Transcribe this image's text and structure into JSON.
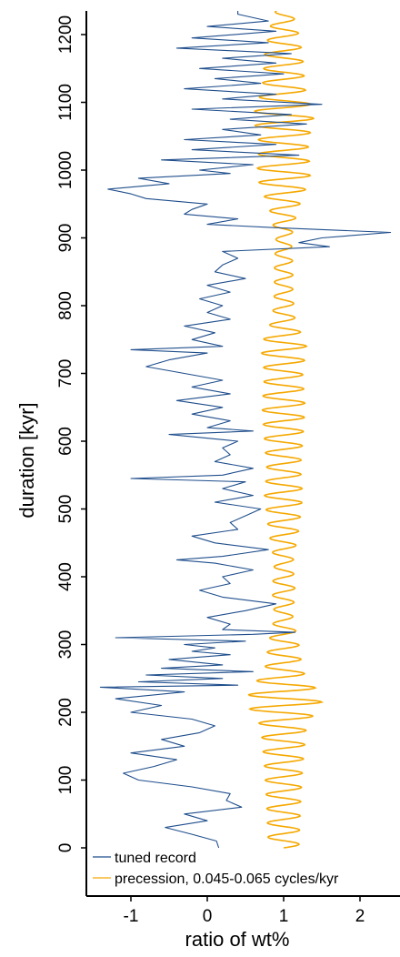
{
  "chart_data": {
    "type": "line",
    "orientation": "vertical",
    "xlabel": "ratio of wt%",
    "ylabel": "duration [kyr]",
    "xlim": [
      -1.5,
      2.6
    ],
    "ylim": [
      -20,
      1240
    ],
    "xticks": [
      -1,
      0,
      1,
      2
    ],
    "xtick_labels": [
      "-1",
      "0",
      "1",
      "2"
    ],
    "yticks": [
      0,
      100,
      200,
      300,
      400,
      500,
      600,
      700,
      800,
      900,
      1000,
      1100,
      1200
    ],
    "ytick_labels": [
      "0",
      "100",
      "200",
      "300",
      "400",
      "500",
      "600",
      "700",
      "800",
      "900",
      "1000",
      "1100",
      "1200"
    ],
    "grid": false,
    "legend_position": "bottom-left",
    "series": [
      {
        "name": "tuned record",
        "color": "#1f4e8c",
        "points": [
          [
            0,
            0.15
          ],
          [
            10,
            0.12
          ],
          [
            20,
            -0.2
          ],
          [
            30,
            -0.55
          ],
          [
            40,
            0.0
          ],
          [
            50,
            -0.3
          ],
          [
            60,
            0.45
          ],
          [
            70,
            0.25
          ],
          [
            80,
            0.3
          ],
          [
            90,
            -0.2
          ],
          [
            100,
            -0.9
          ],
          [
            110,
            -1.1
          ],
          [
            120,
            -0.7
          ],
          [
            130,
            -0.4
          ],
          [
            140,
            -1.0
          ],
          [
            150,
            -0.3
          ],
          [
            160,
            -0.6
          ],
          [
            170,
            -0.1
          ],
          [
            180,
            0.1
          ],
          [
            190,
            -0.2
          ],
          [
            200,
            -1.0
          ],
          [
            210,
            -0.6
          ],
          [
            220,
            -1.2
          ],
          [
            230,
            -0.3
          ],
          [
            237,
            -1.4
          ],
          [
            240,
            0.4
          ],
          [
            245,
            -0.9
          ],
          [
            250,
            0.2
          ],
          [
            255,
            -0.8
          ],
          [
            260,
            0.6
          ],
          [
            265,
            -0.6
          ],
          [
            270,
            0.2
          ],
          [
            278,
            -0.5
          ],
          [
            285,
            0.3
          ],
          [
            290,
            -0.2
          ],
          [
            295,
            0.1
          ],
          [
            300,
            -0.3
          ],
          [
            305,
            0.5
          ],
          [
            310,
            -1.2
          ],
          [
            315,
            0.6
          ],
          [
            318,
            1.15
          ],
          [
            322,
            0.2
          ],
          [
            330,
            0.3
          ],
          [
            340,
            0.0
          ],
          [
            350,
            0.5
          ],
          [
            360,
            0.9
          ],
          [
            370,
            0.2
          ],
          [
            380,
            -0.1
          ],
          [
            390,
            0.3
          ],
          [
            400,
            0.2
          ],
          [
            410,
            0.6
          ],
          [
            420,
            0.1
          ],
          [
            425,
            -0.4
          ],
          [
            430,
            0.2
          ],
          [
            440,
            0.8
          ],
          [
            450,
            0.1
          ],
          [
            460,
            -0.2
          ],
          [
            470,
            0.4
          ],
          [
            480,
            0.3
          ],
          [
            490,
            0.5
          ],
          [
            500,
            0.7
          ],
          [
            510,
            0.1
          ],
          [
            520,
            0.6
          ],
          [
            530,
            0.2
          ],
          [
            540,
            0.5
          ],
          [
            545,
            -1.0
          ],
          [
            550,
            0.2
          ],
          [
            560,
            0.6
          ],
          [
            570,
            0.1
          ],
          [
            580,
            0.3
          ],
          [
            590,
            0.2
          ],
          [
            600,
            0.4
          ],
          [
            610,
            -0.5
          ],
          [
            615,
            0.6
          ],
          [
            620,
            0.0
          ],
          [
            630,
            0.3
          ],
          [
            640,
            -0.2
          ],
          [
            650,
            0.2
          ],
          [
            660,
            -0.4
          ],
          [
            670,
            0.3
          ],
          [
            680,
            -0.2
          ],
          [
            690,
            0.2
          ],
          [
            700,
            -0.3
          ],
          [
            710,
            -0.8
          ],
          [
            720,
            -0.5
          ],
          [
            730,
            0.0
          ],
          [
            735,
            -1.0
          ],
          [
            740,
            0.2
          ],
          [
            750,
            -0.2
          ],
          [
            760,
            0.1
          ],
          [
            770,
            -0.3
          ],
          [
            780,
            0.3
          ],
          [
            790,
            0.0
          ],
          [
            800,
            0.2
          ],
          [
            810,
            -0.1
          ],
          [
            820,
            0.3
          ],
          [
            830,
            0.0
          ],
          [
            840,
            0.5
          ],
          [
            850,
            0.1
          ],
          [
            860,
            0.2
          ],
          [
            870,
            0.4
          ],
          [
            880,
            0.2
          ],
          [
            887,
            1.6
          ],
          [
            893,
            1.2
          ],
          [
            900,
            1.5
          ],
          [
            908,
            2.4
          ],
          [
            915,
            0.9
          ],
          [
            920,
            0.0
          ],
          [
            928,
            0.4
          ],
          [
            935,
            -0.3
          ],
          [
            942,
            -0.2
          ],
          [
            950,
            0.0
          ],
          [
            958,
            -0.8
          ],
          [
            965,
            -1.0
          ],
          [
            972,
            -1.3
          ],
          [
            980,
            -0.5
          ],
          [
            988,
            -0.9
          ],
          [
            995,
            0.3
          ],
          [
            1000,
            -0.1
          ],
          [
            1008,
            0.6
          ],
          [
            1015,
            -0.6
          ],
          [
            1022,
            1.2
          ],
          [
            1030,
            -0.2
          ],
          [
            1038,
            0.9
          ],
          [
            1045,
            -0.3
          ],
          [
            1052,
            0.7
          ],
          [
            1060,
            0.2
          ],
          [
            1068,
            1.3
          ],
          [
            1075,
            0.3
          ],
          [
            1082,
            1.1
          ],
          [
            1090,
            -0.2
          ],
          [
            1097,
            1.5
          ],
          [
            1105,
            0.2
          ],
          [
            1112,
            0.9
          ],
          [
            1120,
            -0.3
          ],
          [
            1128,
            0.7
          ],
          [
            1135,
            0.1
          ],
          [
            1142,
            1.0
          ],
          [
            1150,
            -0.1
          ],
          [
            1158,
            0.9
          ],
          [
            1165,
            0.2
          ],
          [
            1172,
            1.1
          ],
          [
            1180,
            -0.4
          ],
          [
            1188,
            0.8
          ],
          [
            1195,
            -0.2
          ],
          [
            1205,
            0.9
          ],
          [
            1212,
            0.0
          ],
          [
            1220,
            0.8
          ],
          [
            1230,
            0.4
          ],
          [
            1237,
            0.4
          ]
        ]
      },
      {
        "name": "precession, 0.045-0.065 cycles/kyr",
        "color": "#f5a800",
        "center": 1.0,
        "period_kyr": 21,
        "amplitude_envelope": [
          [
            0,
            0.2
          ],
          [
            60,
            0.22
          ],
          [
            120,
            0.25
          ],
          [
            180,
            0.3
          ],
          [
            215,
            0.5
          ],
          [
            240,
            0.4
          ],
          [
            260,
            0.25
          ],
          [
            300,
            0.2
          ],
          [
            340,
            0.12
          ],
          [
            380,
            0.15
          ],
          [
            420,
            0.12
          ],
          [
            470,
            0.2
          ],
          [
            520,
            0.25
          ],
          [
            560,
            0.22
          ],
          [
            600,
            0.25
          ],
          [
            650,
            0.28
          ],
          [
            700,
            0.25
          ],
          [
            740,
            0.3
          ],
          [
            780,
            0.15
          ],
          [
            820,
            0.12
          ],
          [
            860,
            0.12
          ],
          [
            900,
            0.1
          ],
          [
            940,
            0.18
          ],
          [
            990,
            0.35
          ],
          [
            1040,
            0.32
          ],
          [
            1080,
            0.4
          ],
          [
            1120,
            0.28
          ],
          [
            1170,
            0.25
          ],
          [
            1210,
            0.18
          ],
          [
            1237,
            0.1
          ]
        ]
      }
    ]
  }
}
